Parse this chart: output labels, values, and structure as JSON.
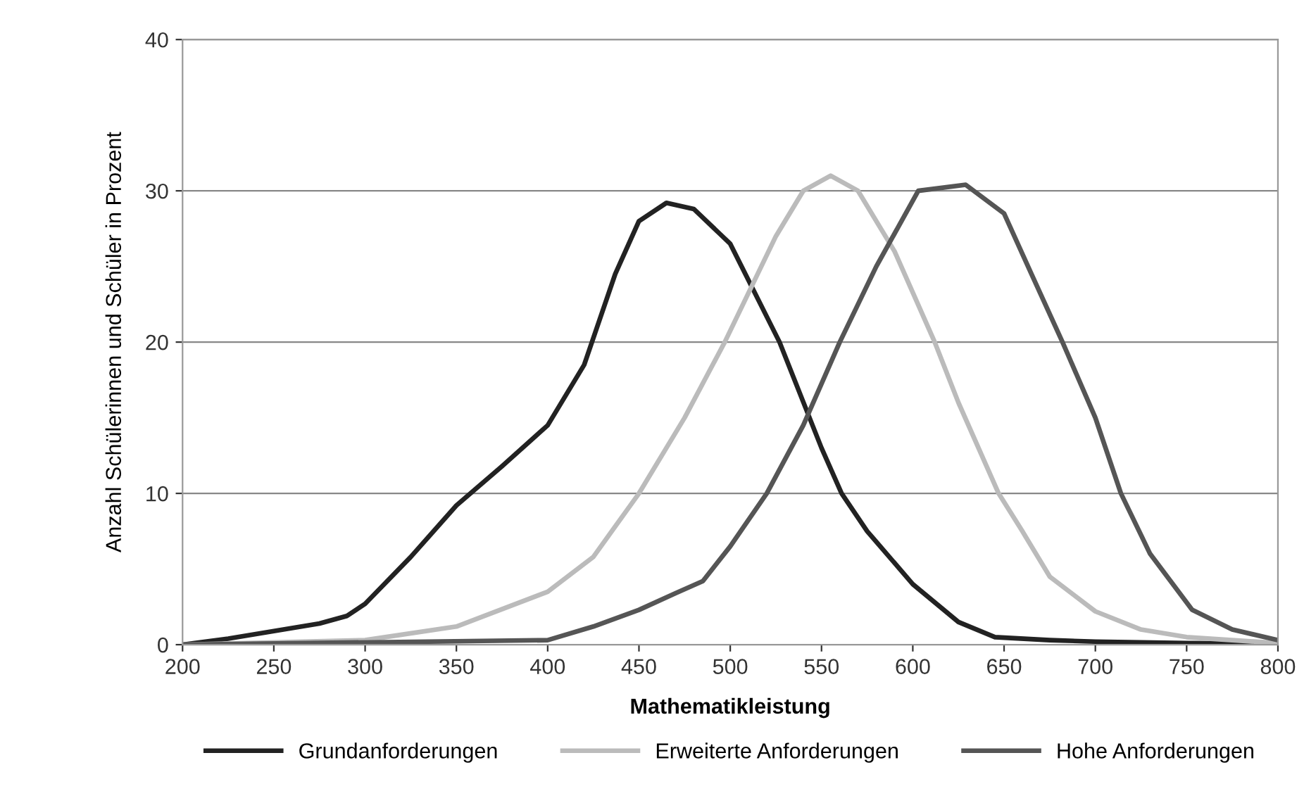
{
  "chart_data": {
    "type": "line",
    "xlabel": "Mathematikleistung",
    "ylabel": "Anzahl Schülerinnen und Schüler in Prozent",
    "xlim": [
      200,
      800
    ],
    "ylim": [
      0,
      40
    ],
    "xticks": [
      200,
      250,
      300,
      350,
      400,
      450,
      500,
      550,
      600,
      650,
      700,
      750,
      800
    ],
    "yticks": [
      0,
      10,
      20,
      30,
      40
    ],
    "grid": "y",
    "legend": "bottom",
    "marker": "none",
    "line_style": "solid",
    "series": [
      {
        "name": "Grundanforderungen",
        "color": "#222222",
        "x": [
          200,
          225,
          250,
          275,
          290,
          300,
          325,
          350,
          375,
          400,
          420,
          437,
          450,
          465,
          480,
          500,
          527,
          550,
          561,
          575,
          600,
          625,
          645,
          675,
          700,
          750,
          800
        ],
        "values": [
          0,
          0.4,
          0.9,
          1.4,
          1.9,
          2.7,
          5.8,
          9.2,
          11.8,
          14.5,
          18.5,
          24.5,
          28,
          29.2,
          28.8,
          26.5,
          20,
          13,
          10,
          7.5,
          4,
          1.5,
          0.5,
          0.3,
          0.2,
          0.1,
          0.05
        ]
      },
      {
        "name": "Erweiterte Anforderungen",
        "color": "#bbbbbb",
        "x": [
          200,
          300,
          350,
          400,
          425,
          450,
          475,
          497,
          525,
          540,
          555,
          570,
          590,
          612,
          625,
          647,
          660,
          675,
          700,
          725,
          750,
          800
        ],
        "values": [
          0,
          0.3,
          1.2,
          3.5,
          5.8,
          10,
          15,
          20,
          27,
          30,
          31,
          30,
          26,
          20,
          16,
          10,
          7.5,
          4.5,
          2.2,
          1,
          0.5,
          0.1
        ]
      },
      {
        "name": "Hohe Anforderungen",
        "color": "#555555",
        "x": [
          200,
          400,
          425,
          450,
          470,
          485,
          500,
          520,
          540,
          560,
          580,
          603,
          629,
          650,
          665,
          682,
          700,
          714,
          730,
          753,
          775,
          800
        ],
        "values": [
          0,
          0.3,
          1.2,
          2.3,
          3.4,
          4.2,
          6.5,
          10,
          14.5,
          20,
          25,
          30,
          30.4,
          28.5,
          24.5,
          20,
          15,
          10,
          6,
          2.3,
          1,
          0.3
        ]
      }
    ]
  }
}
